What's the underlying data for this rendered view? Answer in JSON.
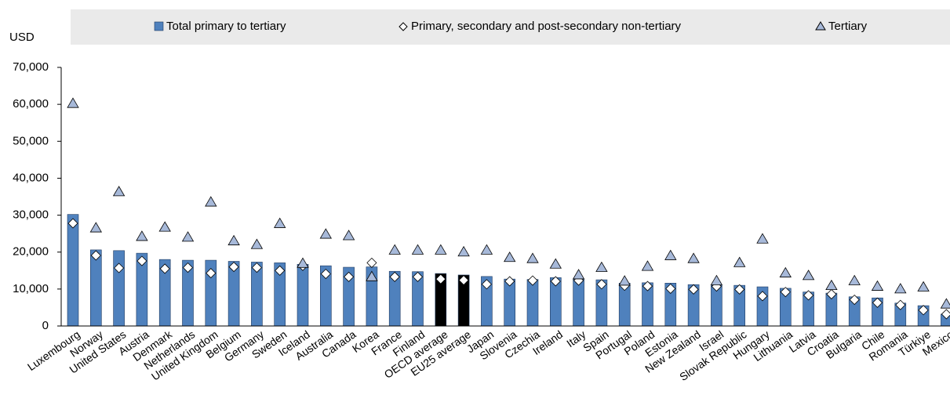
{
  "chart_data": {
    "type": "bar",
    "y_label": "USD",
    "categories": [
      "Luxembourg",
      "Norway",
      "United States",
      "Austria",
      "Denmark",
      "Netherlands",
      "United Kingdom",
      "Belgium",
      "Germany",
      "Sweden",
      "Iceland",
      "Australia",
      "Canada",
      "Korea",
      "France",
      "Finland",
      "OECD average",
      "EU25 average",
      "Japan",
      "Slovenia",
      "Czechia",
      "Ireland",
      "Italy",
      "Spain",
      "Portugal",
      "Poland",
      "Estonia",
      "New Zealand",
      "Israel",
      "Slovak Republic",
      "Hungary",
      "Lithuania",
      "Latvia",
      "Croatia",
      "Bulgaria",
      "Chile",
      "Romania",
      "Türkiye",
      "Mexico"
    ],
    "series": [
      {
        "name": "Total primary to tertiary",
        "marker": "bar",
        "color": "#4f81bd",
        "colors": [
          "#4f81bd",
          "#4f81bd",
          "#4f81bd",
          "#4f81bd",
          "#4f81bd",
          "#4f81bd",
          "#4f81bd",
          "#4f81bd",
          "#4f81bd",
          "#4f81bd",
          "#4f81bd",
          "#4f81bd",
          "#4f81bd",
          "#4f81bd",
          "#4f81bd",
          "#4f81bd",
          "#000000",
          "#000000",
          "#4f81bd",
          "#4f81bd",
          "#4f81bd",
          "#4f81bd",
          "#4f81bd",
          "#4f81bd",
          "#4f81bd",
          "#4f81bd",
          "#4f81bd",
          "#4f81bd",
          "#4f81bd",
          "#4f81bd",
          "#4f81bd",
          "#4f81bd",
          "#4f81bd",
          "#4f81bd",
          "#4f81bd",
          "#4f81bd",
          "#4f81bd",
          "#4f81bd",
          "#4f81bd"
        ],
        "values": [
          30200,
          20600,
          20400,
          19700,
          18000,
          17800,
          17800,
          17500,
          17300,
          17100,
          16700,
          16300,
          15900,
          16000,
          14800,
          14700,
          14200,
          13800,
          13400,
          12700,
          12600,
          13100,
          12600,
          12500,
          11600,
          11700,
          11600,
          11200,
          11000,
          11000,
          10600,
          10200,
          9200,
          8900,
          7900,
          7600,
          6200,
          5500,
          3200
        ]
      },
      {
        "name": "Primary, secondary and post-secondary non-tertiary",
        "marker": "diamond",
        "color": "#ffffff",
        "values": [
          27800,
          19100,
          15700,
          17600,
          15500,
          15800,
          14300,
          16000,
          15800,
          15000,
          16300,
          14100,
          13300,
          17100,
          13300,
          13300,
          12700,
          12400,
          11300,
          12100,
          12300,
          12100,
          12300,
          11300,
          10900,
          10800,
          10100,
          9900,
          10700,
          9900,
          8100,
          9200,
          8300,
          8600,
          7100,
          6300,
          5700,
          4300,
          3200
        ]
      },
      {
        "name": "Tertiary",
        "marker": "triangle",
        "color": "#a7b9d9",
        "values": [
          60200,
          26500,
          36300,
          24200,
          26700,
          24000,
          33500,
          23000,
          22000,
          27700,
          16900,
          24800,
          24400,
          13300,
          20500,
          20500,
          20500,
          20000,
          20500,
          18500,
          18200,
          16700,
          13800,
          15800,
          12100,
          16100,
          19000,
          18200,
          12200,
          17100,
          23500,
          14300,
          13600,
          10900,
          12200,
          10700,
          10000,
          10500,
          5900
        ]
      }
    ],
    "ylim": [
      0,
      70000
    ],
    "yticks": [
      0,
      {
        "value": 10000,
        "label": "10,000"
      },
      {
        "value": 20000,
        "label": "20,000"
      },
      {
        "value": 30000,
        "label": "30,000"
      },
      {
        "value": 40000,
        "label": "40,000"
      },
      {
        "value": 50000,
        "label": "50,000"
      },
      {
        "value": 60000,
        "label": "60,000"
      },
      {
        "value": 70000,
        "label": "70,000"
      }
    ],
    "grid": false,
    "legend": "top"
  }
}
